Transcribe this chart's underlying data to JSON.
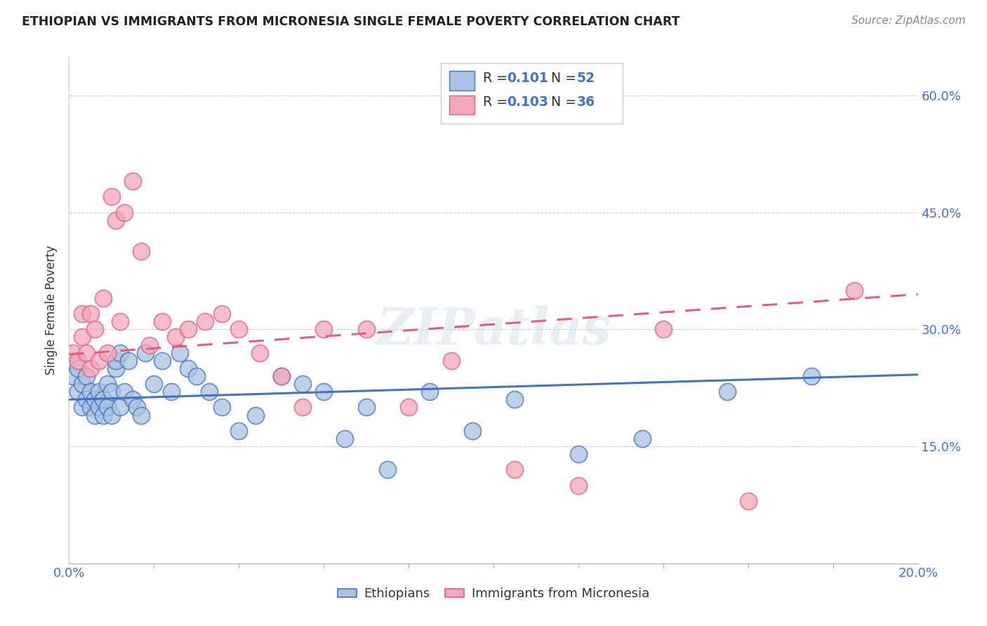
{
  "title": "ETHIOPIAN VS IMMIGRANTS FROM MICRONESIA SINGLE FEMALE POVERTY CORRELATION CHART",
  "source": "Source: ZipAtlas.com",
  "ylabel": "Single Female Poverty",
  "right_yticks": [
    "60.0%",
    "45.0%",
    "30.0%",
    "15.0%"
  ],
  "right_ytick_vals": [
    0.6,
    0.45,
    0.3,
    0.15
  ],
  "legend_r1": "0.101",
  "legend_n1": "52",
  "legend_r2": "0.103",
  "legend_n2": "36",
  "ethiopians_color": "#a8c4e0",
  "micronesia_color": "#f4a7b9",
  "ethiopians_line_color": "#4472c4",
  "micronesia_line_color": "#e06080",
  "watermark": "ZIPatlas",
  "background_color": "#ffffff",
  "ethiopians_x": [
    0.001,
    0.002,
    0.002,
    0.003,
    0.003,
    0.004,
    0.004,
    0.005,
    0.005,
    0.006,
    0.006,
    0.007,
    0.007,
    0.008,
    0.008,
    0.009,
    0.009,
    0.01,
    0.01,
    0.011,
    0.011,
    0.012,
    0.012,
    0.013,
    0.014,
    0.015,
    0.016,
    0.017,
    0.018,
    0.02,
    0.022,
    0.024,
    0.026,
    0.028,
    0.03,
    0.033,
    0.036,
    0.04,
    0.044,
    0.05,
    0.055,
    0.06,
    0.065,
    0.07,
    0.075,
    0.085,
    0.095,
    0.105,
    0.12,
    0.135,
    0.155,
    0.175
  ],
  "ethiopians_y": [
    0.24,
    0.22,
    0.25,
    0.2,
    0.23,
    0.21,
    0.24,
    0.2,
    0.22,
    0.19,
    0.21,
    0.2,
    0.22,
    0.19,
    0.21,
    0.2,
    0.23,
    0.19,
    0.22,
    0.25,
    0.26,
    0.2,
    0.27,
    0.22,
    0.26,
    0.21,
    0.2,
    0.19,
    0.27,
    0.23,
    0.26,
    0.22,
    0.27,
    0.25,
    0.24,
    0.22,
    0.2,
    0.17,
    0.19,
    0.24,
    0.23,
    0.22,
    0.16,
    0.2,
    0.12,
    0.22,
    0.17,
    0.21,
    0.14,
    0.16,
    0.22,
    0.24
  ],
  "micronesia_x": [
    0.001,
    0.002,
    0.003,
    0.003,
    0.004,
    0.005,
    0.005,
    0.006,
    0.007,
    0.008,
    0.009,
    0.01,
    0.011,
    0.012,
    0.013,
    0.015,
    0.017,
    0.019,
    0.022,
    0.025,
    0.028,
    0.032,
    0.036,
    0.04,
    0.045,
    0.05,
    0.055,
    0.06,
    0.07,
    0.08,
    0.09,
    0.105,
    0.12,
    0.14,
    0.16,
    0.185
  ],
  "micronesia_y": [
    0.27,
    0.26,
    0.29,
    0.32,
    0.27,
    0.25,
    0.32,
    0.3,
    0.26,
    0.34,
    0.27,
    0.47,
    0.44,
    0.31,
    0.45,
    0.49,
    0.4,
    0.28,
    0.31,
    0.29,
    0.3,
    0.31,
    0.32,
    0.3,
    0.27,
    0.24,
    0.2,
    0.3,
    0.3,
    0.2,
    0.26,
    0.12,
    0.1,
    0.3,
    0.08,
    0.35
  ],
  "xlim": [
    0.0,
    0.2
  ],
  "ylim": [
    0.0,
    0.65
  ],
  "grid_ytick_vals": [
    0.15,
    0.3,
    0.45,
    0.6
  ]
}
